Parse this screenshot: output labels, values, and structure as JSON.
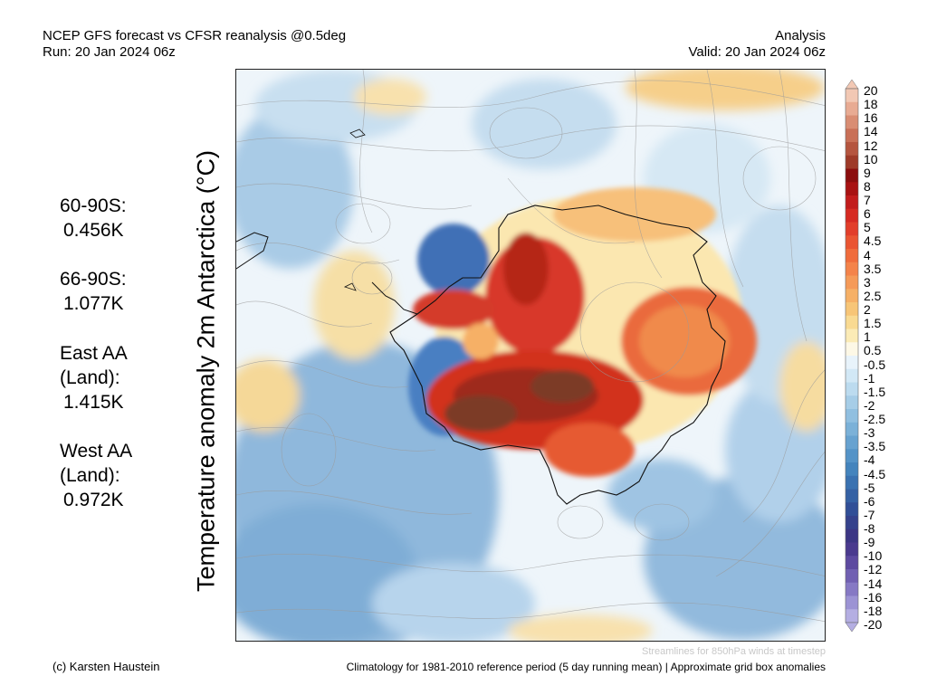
{
  "header": {
    "title_line1": "NCEP GFS forecast vs CFSR reanalysis @0.5deg",
    "title_line2": "Run: 20 Jan 2024 06z",
    "right_line1": "Analysis",
    "right_line2": "Valid: 20 Jan 2024 06z"
  },
  "map": {
    "ylabel": "Temperature anomaly 2m Antarctica (°C)",
    "streamline_note": "Streamlines for 850hPa winds at timestep"
  },
  "stats": [
    {
      "label_lines": [
        "60-90S:"
      ],
      "value": "0.456K"
    },
    {
      "label_lines": [
        "66-90S:"
      ],
      "value": "1.077K"
    },
    {
      "label_lines": [
        "East AA",
        "(Land):"
      ],
      "value": "1.415K"
    },
    {
      "label_lines": [
        "West AA",
        "(Land):"
      ],
      "value": "0.972K"
    }
  ],
  "colorbar": {
    "labels": [
      "20",
      "18",
      "16",
      "14",
      "12",
      "10",
      "9",
      "8",
      "7",
      "6",
      "5",
      "4.5",
      "4",
      "3.5",
      "3",
      "2.5",
      "2",
      "1.5",
      "1",
      "0.5",
      "-0.5",
      "-1",
      "-1.5",
      "-2",
      "-2.5",
      "-3",
      "-3.5",
      "-4",
      "-4.5",
      "-5",
      "-6",
      "-7",
      "-8",
      "-9",
      "-10",
      "-12",
      "-14",
      "-16",
      "-18",
      "-20"
    ],
    "colors": [
      "#f2c8b4",
      "#e8ab93",
      "#d98d73",
      "#c97057",
      "#b5553f",
      "#9e3a28",
      "#8b0d0d",
      "#a81212",
      "#c21c1c",
      "#d62a22",
      "#e23e2a",
      "#ea5532",
      "#f06c3c",
      "#f4834a",
      "#f59a58",
      "#f6b066",
      "#f7c577",
      "#f9da92",
      "#fbebb6",
      "#fdf8e6",
      "#e8f3fb",
      "#d2e8f6",
      "#bcdbef",
      "#a6cde7",
      "#90bfe0",
      "#7bb1d8",
      "#67a2d0",
      "#5493c7",
      "#4484bd",
      "#3a72b1",
      "#3561a4",
      "#314f97",
      "#35428c",
      "#3c3684",
      "#4a3a8e",
      "#5d4aa0",
      "#7160b2",
      "#8679c4",
      "#9c93d4",
      "#b4aee2"
    ]
  },
  "footer": {
    "credit": "(c) Karsten Haustein",
    "climatology": "Climatology for 1981-2010 reference period (5 day running mean) | Approximate grid box anomalies"
  }
}
